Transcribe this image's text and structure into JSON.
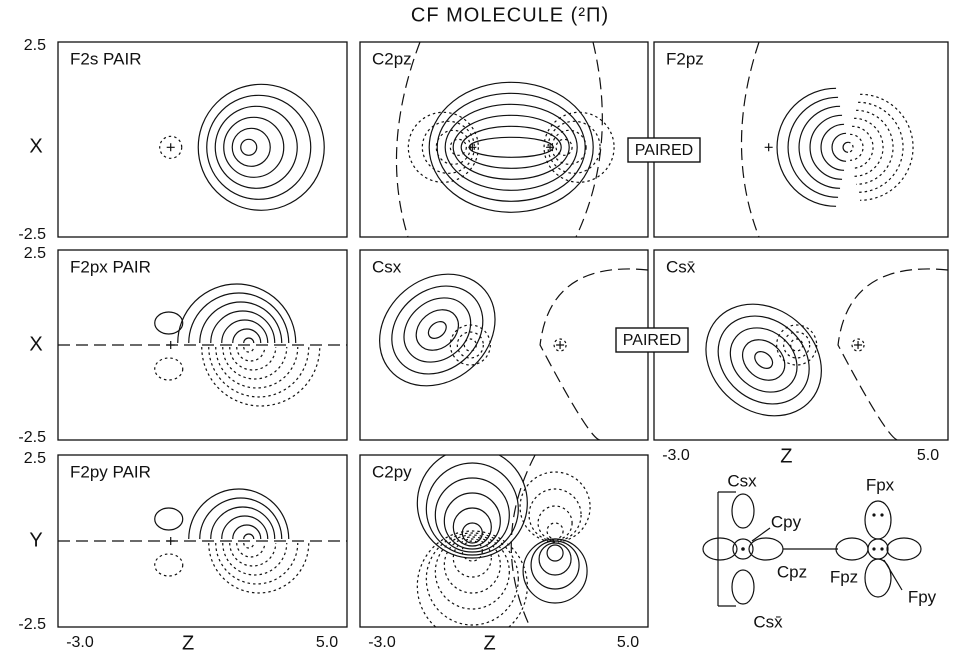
{
  "title": "CF MOLECULE (²Π)",
  "panels": [
    {
      "label": "F2s PAIR"
    },
    {
      "label": "C2pz"
    },
    {
      "label": "F2pz"
    },
    {
      "label": "F2px PAIR"
    },
    {
      "label": "Csx"
    },
    {
      "label": "Csx̄"
    },
    {
      "label": "F2py PAIR"
    },
    {
      "label": "C2py"
    }
  ],
  "row_labels": [
    "X",
    "X",
    "Y"
  ],
  "y_ticks": [
    "2.5",
    "-2.5"
  ],
  "x_ticks": [
    "-3.0",
    "5.0"
  ],
  "x_label": "Z",
  "paired_label": "PAIRED",
  "diagram": {
    "labels": [
      "Csx",
      "Cpy",
      "Cpz",
      "Fpz",
      "Fpx",
      "Fpy",
      "Csx̄"
    ]
  }
}
